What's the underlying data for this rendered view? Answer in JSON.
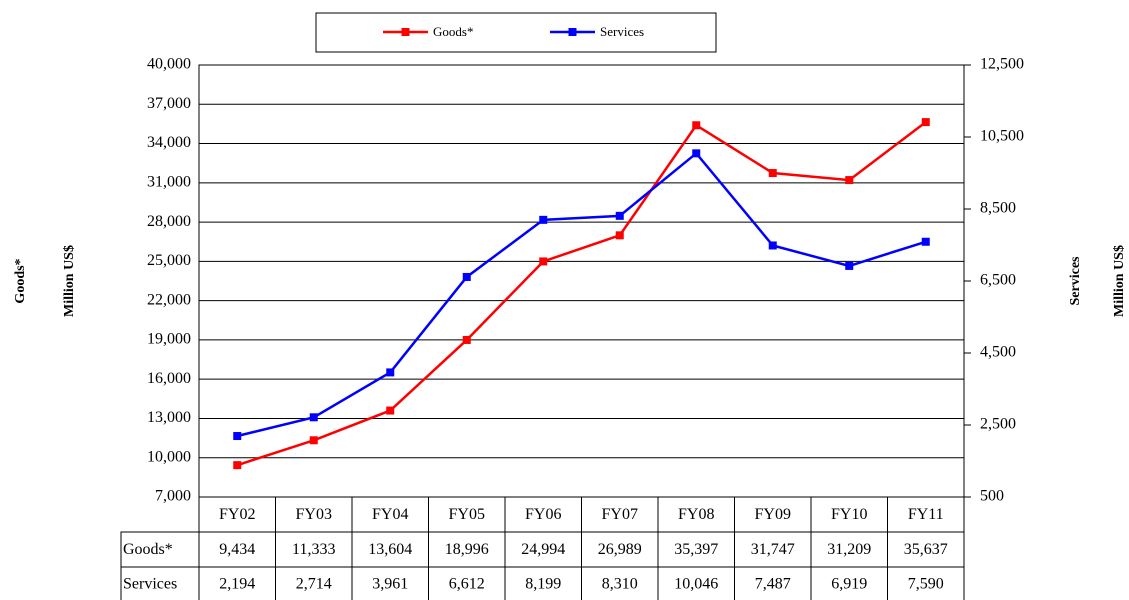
{
  "chart_data": {
    "type": "line",
    "categories": [
      "FY02",
      "FY03",
      "FY04",
      "FY05",
      "FY06",
      "FY07",
      "FY08",
      "FY09",
      "FY10",
      "FY11"
    ],
    "series": [
      {
        "name": "Goods*",
        "color": "#ff0000",
        "values": [
          9434,
          11333,
          13604,
          18996,
          24994,
          26989,
          35397,
          31747,
          31209,
          35637
        ],
        "value_labels": [
          "9,434",
          "11,333",
          "13,604",
          "18,996",
          "24,994",
          "26,989",
          "35,397",
          "31,747",
          "31,209",
          "35,637"
        ]
      },
      {
        "name": "Services",
        "color": "#0000ff",
        "axis": "y2",
        "values": [
          2194,
          2714,
          3961,
          6612,
          8199,
          8310,
          10046,
          7487,
          6919,
          7590
        ],
        "value_labels": [
          "2,194",
          "2,714",
          "3,961",
          "6,612",
          "8,199",
          "8,310",
          "10,046",
          "7,487",
          "6,919",
          "7,590"
        ]
      }
    ],
    "ylabel": [
      "Goods*",
      "Million US$"
    ],
    "y2label": [
      "Services",
      "Million US$"
    ],
    "ylim": [
      7000,
      40000
    ],
    "yticks": [
      {
        "value": 7000,
        "label": "7,000"
      },
      {
        "value": 10000,
        "label": "10,000"
      },
      {
        "value": 13000,
        "label": "13,000"
      },
      {
        "value": 16000,
        "label": "16,000"
      },
      {
        "value": 19000,
        "label": "19,000"
      },
      {
        "value": 22000,
        "label": "22,000"
      },
      {
        "value": 25000,
        "label": "25,000"
      },
      {
        "value": 28000,
        "label": "28,000"
      },
      {
        "value": 31000,
        "label": "31,000"
      },
      {
        "value": 34000,
        "label": "34,000"
      },
      {
        "value": 37000,
        "label": "37,000"
      },
      {
        "value": 40000,
        "label": "40,000"
      }
    ],
    "y2lim": [
      500,
      12500
    ],
    "y2ticks": [
      500,
      {
        "value": 2500,
        "label": "2,500"
      },
      {
        "value": 4500,
        "label": "4,500"
      },
      {
        "value": 6500,
        "label": "6,500"
      },
      {
        "value": 8500,
        "label": "8,500"
      },
      {
        "value": 10500,
        "label": "10,500"
      },
      {
        "value": 12500,
        "label": "12,500"
      }
    ],
    "grid": true,
    "legend": "top"
  }
}
